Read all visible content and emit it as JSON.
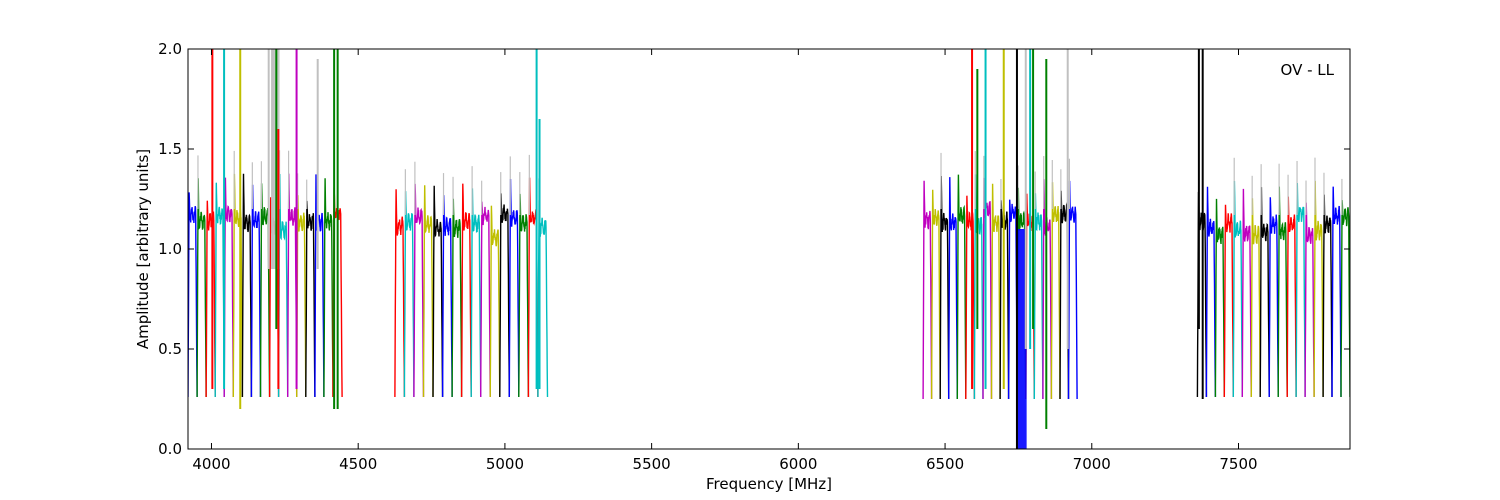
{
  "chart_data": {
    "type": "line",
    "title": "",
    "annotation": "OV - LL",
    "xlabel": "Frequency [MHz]",
    "ylabel": "Amplitude [arbitrary units]",
    "xlim": [
      3920,
      7880
    ],
    "ylim": [
      0.0,
      2.0
    ],
    "xticks": [
      "4000",
      "4500",
      "5000",
      "5500",
      "6000",
      "6500",
      "7000",
      "7500"
    ],
    "yticks": [
      "0.0",
      "0.5",
      "1.0",
      "1.5",
      "2.0"
    ],
    "grid": false,
    "legend": "none",
    "colors": {
      "blue": "#0000ff",
      "green": "#008000",
      "red": "#ff0000",
      "cyan": "#00bfbf",
      "magenta": "#bf00bf",
      "yellow": "#bfbf00",
      "black": "#000000",
      "gray": "#c0c0c0"
    },
    "color_cycle": [
      "blue",
      "green",
      "red",
      "cyan",
      "magenta",
      "yellow",
      "black"
    ],
    "bands": [
      {
        "start": 3920,
        "end": 4445,
        "count": 17,
        "start_color": 0,
        "base": 1.15,
        "top": 1.32,
        "min": 0.26
      },
      {
        "start": 4625,
        "end": 5145,
        "count": 16,
        "start_color": 2,
        "base": 1.12,
        "top": 1.3,
        "min": 0.26
      },
      {
        "start": 6425,
        "end": 6950,
        "count": 18,
        "start_color": 4,
        "base": 1.15,
        "top": 1.32,
        "min": 0.25
      },
      {
        "start": 7360,
        "end": 7880,
        "count": 17,
        "start_color": 6,
        "base": 1.12,
        "top": 1.3,
        "min": 0.26
      }
    ],
    "spikes": [
      {
        "x": 4003,
        "color": "red",
        "y0": 0.3,
        "y1": 2.0
      },
      {
        "x": 4043,
        "color": "cyan",
        "y0": 0.3,
        "y1": 2.0
      },
      {
        "x": 4098,
        "color": "yellow",
        "y0": 0.2,
        "y1": 2.0
      },
      {
        "x": 4195,
        "color": "gray",
        "y0": 0.9,
        "y1": 2.0
      },
      {
        "x": 4208,
        "color": "gray",
        "y0": 0.9,
        "y1": 2.0
      },
      {
        "x": 4221,
        "color": "green",
        "y0": 0.6,
        "y1": 2.0
      },
      {
        "x": 4228,
        "color": "red",
        "y0": 0.3,
        "y1": 1.6
      },
      {
        "x": 4290,
        "color": "magenta",
        "y0": 0.3,
        "y1": 2.0
      },
      {
        "x": 4362,
        "color": "gray",
        "y0": 0.9,
        "y1": 1.95
      },
      {
        "x": 4418,
        "color": "green",
        "y0": 0.2,
        "y1": 2.0
      },
      {
        "x": 4430,
        "color": "green",
        "y0": 0.2,
        "y1": 2.0
      },
      {
        "x": 5108,
        "color": "cyan",
        "y0": 0.3,
        "y1": 2.0
      },
      {
        "x": 5118,
        "color": "cyan",
        "y0": 0.3,
        "y1": 1.65
      },
      {
        "x": 6592,
        "color": "red",
        "y0": 0.3,
        "y1": 2.0
      },
      {
        "x": 6610,
        "color": "green",
        "y0": 0.6,
        "y1": 1.9
      },
      {
        "x": 6638,
        "color": "cyan",
        "y0": 0.3,
        "y1": 2.0
      },
      {
        "x": 6700,
        "color": "yellow",
        "y0": 0.3,
        "y1": 2.0
      },
      {
        "x": 6745,
        "color": "black",
        "y0": 0.0,
        "y1": 2.0
      },
      {
        "x": 6775,
        "color": "gray",
        "y0": 0.5,
        "y1": 2.0
      },
      {
        "x": 6790,
        "color": "cyan",
        "y0": 0.5,
        "y1": 2.0
      },
      {
        "x": 6800,
        "color": "green",
        "y0": 0.6,
        "y1": 2.0
      },
      {
        "x": 6845,
        "color": "green",
        "y0": 0.1,
        "y1": 1.95
      },
      {
        "x": 6918,
        "color": "gray",
        "y0": 0.5,
        "y1": 2.0
      },
      {
        "x": 7365,
        "color": "black",
        "y0": 0.6,
        "y1": 2.0
      },
      {
        "x": 7378,
        "color": "black",
        "y0": 0.25,
        "y1": 2.0
      }
    ],
    "blocks": [
      {
        "x0": 6742,
        "x1": 6778,
        "color": "blue",
        "y0": 0.0,
        "y1": 1.1
      },
      {
        "x0": 4203,
        "x1": 4232,
        "color": "gray",
        "y0": 0.9,
        "y1": 2.0
      }
    ]
  }
}
